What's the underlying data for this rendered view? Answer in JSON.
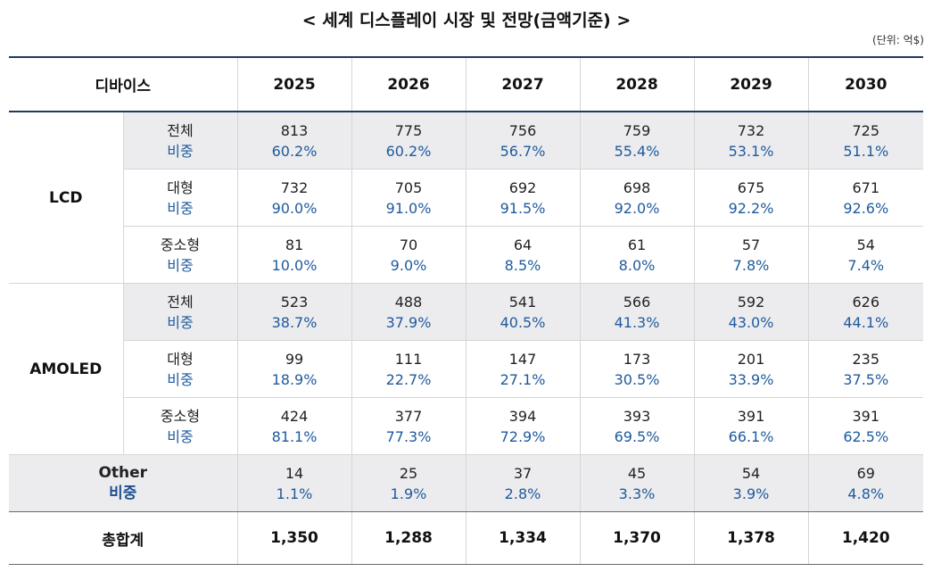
{
  "title": "< 세계 디스플레이 시장 및 전망(금액기준) >",
  "unit": "(단위: 억$)",
  "header": {
    "device": "디바이스",
    "years": [
      "2025",
      "2026",
      "2027",
      "2028",
      "2029",
      "2030"
    ]
  },
  "groups": [
    {
      "name": "LCD",
      "rows": [
        {
          "label": "전체",
          "share_label": "비중",
          "values": [
            "813",
            "775",
            "756",
            "759",
            "732",
            "725"
          ],
          "shares": [
            "60.2%",
            "60.2%",
            "56.7%",
            "55.4%",
            "53.1%",
            "51.1%"
          ]
        },
        {
          "label": "대형",
          "share_label": "비중",
          "values": [
            "732",
            "705",
            "692",
            "698",
            "675",
            "671"
          ],
          "shares": [
            "90.0%",
            "91.0%",
            "91.5%",
            "92.0%",
            "92.2%",
            "92.6%"
          ]
        },
        {
          "label": "중소형",
          "share_label": "비중",
          "values": [
            "81",
            "70",
            "64",
            "61",
            "57",
            "54"
          ],
          "shares": [
            "10.0%",
            "9.0%",
            "8.5%",
            "8.0%",
            "7.8%",
            "7.4%"
          ]
        }
      ]
    },
    {
      "name": "AMOLED",
      "rows": [
        {
          "label": "전체",
          "share_label": "비중",
          "values": [
            "523",
            "488",
            "541",
            "566",
            "592",
            "626"
          ],
          "shares": [
            "38.7%",
            "37.9%",
            "40.5%",
            "41.3%",
            "43.0%",
            "44.1%"
          ]
        },
        {
          "label": "대형",
          "share_label": "비중",
          "values": [
            "99",
            "111",
            "147",
            "173",
            "201",
            "235"
          ],
          "shares": [
            "18.9%",
            "22.7%",
            "27.1%",
            "30.5%",
            "33.9%",
            "37.5%"
          ]
        },
        {
          "label": "중소형",
          "share_label": "비중",
          "values": [
            "424",
            "377",
            "394",
            "393",
            "391",
            "391"
          ],
          "shares": [
            "81.1%",
            "77.3%",
            "72.9%",
            "69.5%",
            "66.1%",
            "62.5%"
          ]
        }
      ]
    }
  ],
  "other": {
    "label": "Other",
    "share_label": "비중",
    "values": [
      "14",
      "25",
      "37",
      "45",
      "54",
      "69"
    ],
    "shares": [
      "1.1%",
      "1.9%",
      "2.8%",
      "3.3%",
      "3.9%",
      "4.8%"
    ]
  },
  "total": {
    "label": "총합계",
    "values": [
      "1,350",
      "1,288",
      "1,334",
      "1,370",
      "1,378",
      "1,420"
    ]
  }
}
